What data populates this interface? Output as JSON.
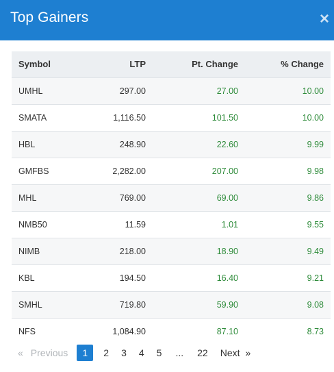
{
  "header": {
    "title": "Top Gainers",
    "close_label": "×"
  },
  "table": {
    "columns": [
      "Symbol",
      "LTP",
      "Pt. Change",
      "% Change"
    ],
    "rows": [
      {
        "symbol": "UMHL",
        "ltp": "297.00",
        "pt_change": "27.00",
        "pct_change": "10.00"
      },
      {
        "symbol": "SMATA",
        "ltp": "1,116.50",
        "pt_change": "101.50",
        "pct_change": "10.00"
      },
      {
        "symbol": "HBL",
        "ltp": "248.90",
        "pt_change": "22.60",
        "pct_change": "9.99"
      },
      {
        "symbol": "GMFBS",
        "ltp": "2,282.00",
        "pt_change": "207.00",
        "pct_change": "9.98"
      },
      {
        "symbol": "MHL",
        "ltp": "769.00",
        "pt_change": "69.00",
        "pct_change": "9.86"
      },
      {
        "symbol": "NMB50",
        "ltp": "11.59",
        "pt_change": "1.01",
        "pct_change": "9.55"
      },
      {
        "symbol": "NIMB",
        "ltp": "218.00",
        "pt_change": "18.90",
        "pct_change": "9.49"
      },
      {
        "symbol": "KBL",
        "ltp": "194.50",
        "pt_change": "16.40",
        "pct_change": "9.21"
      },
      {
        "symbol": "SMHL",
        "ltp": "719.80",
        "pt_change": "59.90",
        "pct_change": "9.08"
      },
      {
        "symbol": "NFS",
        "ltp": "1,084.90",
        "pt_change": "87.10",
        "pct_change": "8.73"
      }
    ]
  },
  "pagination": {
    "prev_arrow": "«",
    "prev_label": "Previous",
    "pages": [
      "1",
      "2",
      "3",
      "4",
      "5"
    ],
    "active_page": "1",
    "ellipsis": "...",
    "last_page": "22",
    "next_label": "Next",
    "next_arrow": "»"
  },
  "colors": {
    "header": "#1e7fd1",
    "gain": "#2e8b3a"
  }
}
